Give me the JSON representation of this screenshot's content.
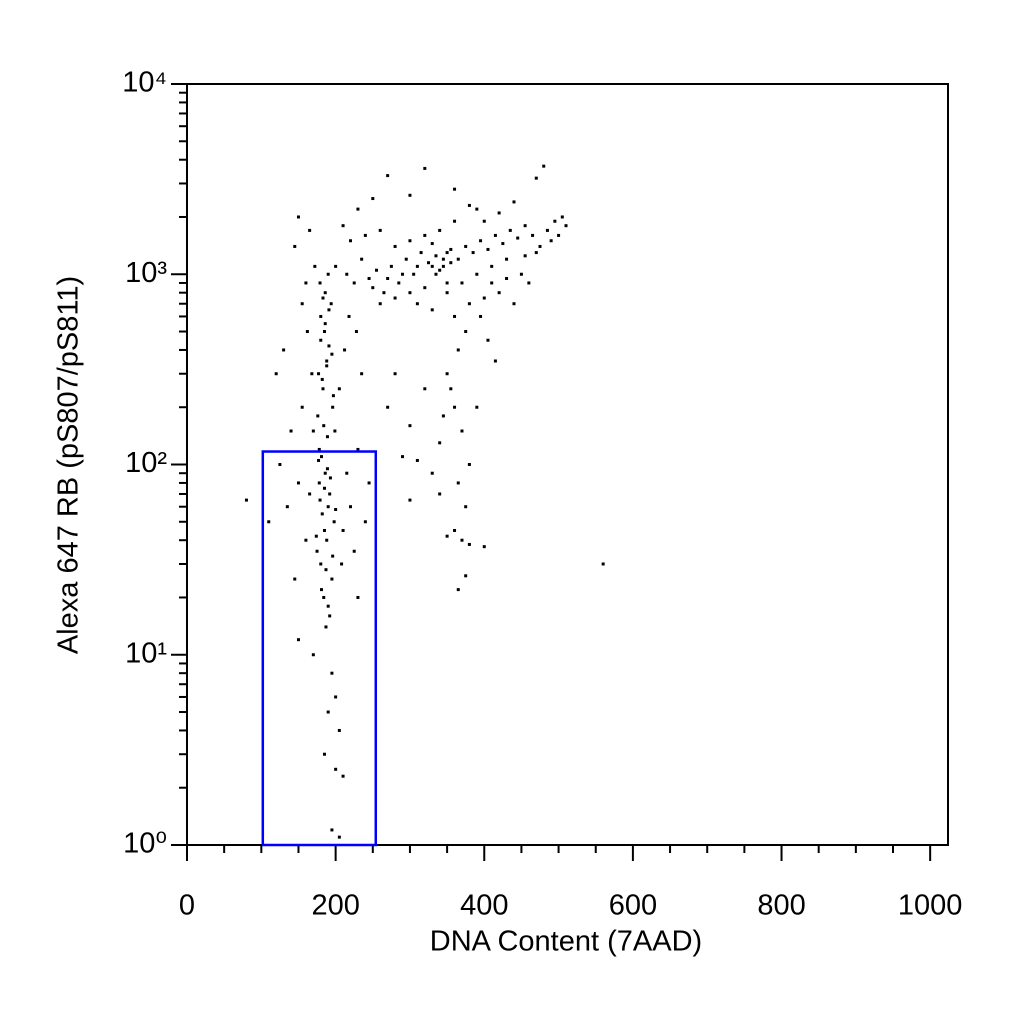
{
  "chart_data": {
    "type": "scatter",
    "xlabel": "DNA Content (7AAD)",
    "ylabel": "Alexa 647 RB (pS807/pS811)",
    "xlim": [
      0,
      1024
    ],
    "ylim": [
      1,
      10000
    ],
    "yscale": "log",
    "xticks": [
      0,
      200,
      400,
      600,
      800,
      1000
    ],
    "xminorticks": [
      50,
      100,
      150,
      250,
      300,
      350,
      450,
      500,
      550,
      650,
      700,
      750,
      850,
      900,
      950
    ],
    "yticks": [
      {
        "value": 1,
        "label": "10⁰"
      },
      {
        "value": 10,
        "label": "10¹"
      },
      {
        "value": 100,
        "label": "10²"
      },
      {
        "value": 1000,
        "label": "10³"
      },
      {
        "value": 10000,
        "label": "10⁴"
      }
    ],
    "yminorticks": [
      2,
      3,
      4,
      5,
      6,
      7,
      8,
      9,
      20,
      30,
      40,
      50,
      60,
      70,
      80,
      90,
      200,
      300,
      400,
      500,
      600,
      700,
      800,
      900,
      2000,
      3000,
      4000,
      5000,
      6000,
      7000,
      8000,
      9000
    ],
    "color": "#000000",
    "gate": {
      "x": [
        102,
        254
      ],
      "y": [
        1,
        117
      ],
      "color": "#0000ff"
    },
    "x": [
      180,
      185,
      190,
      178,
      195,
      188,
      182,
      192,
      186,
      175,
      198,
      184,
      190,
      187,
      179,
      193,
      181,
      189,
      196,
      183,
      177,
      188,
      191,
      185,
      180,
      194,
      186,
      179,
      190,
      184,
      176,
      197,
      182,
      188,
      195,
      180,
      186,
      191,
      183,
      178,
      199,
      187,
      192,
      181,
      196,
      174,
      200,
      185,
      189,
      177,
      160,
      165,
      170,
      168,
      162,
      155,
      150,
      210,
      215,
      220,
      225,
      230,
      205,
      212,
      218,
      208,
      230,
      240,
      245,
      235,
      228,
      140,
      130,
      120,
      135,
      145,
      150,
      170,
      195,
      200,
      190,
      205,
      185,
      200,
      210,
      195,
      205,
      80,
      110,
      125,
      155,
      160,
      172,
      145,
      150,
      165,
      200,
      215,
      225,
      235,
      245,
      255,
      265,
      275,
      285,
      295,
      305,
      315,
      325,
      335,
      345,
      355,
      365,
      375,
      385,
      395,
      405,
      415,
      425,
      435,
      445,
      455,
      465,
      475,
      485,
      495,
      505,
      480,
      470,
      440,
      420,
      400,
      380,
      360,
      340,
      320,
      300,
      280,
      260,
      240,
      220,
      210,
      230,
      250,
      270,
      320,
      300,
      360,
      390,
      330,
      350,
      340,
      335,
      345,
      330,
      355,
      350,
      320,
      310,
      290,
      270,
      250,
      260,
      280,
      300,
      310,
      330,
      350,
      370,
      390,
      410,
      430,
      450,
      460,
      440,
      420,
      400,
      380,
      360,
      470,
      490,
      500,
      510,
      455,
      430,
      410,
      350,
      360,
      370,
      380,
      365,
      375,
      355,
      345,
      365,
      375,
      360,
      370,
      380,
      350,
      400,
      340,
      330,
      300,
      310,
      320,
      395,
      405,
      415,
      390,
      340,
      300,
      290,
      280,
      270,
      560,
      365,
      375
    ],
    "values": [
      30,
      45,
      60,
      80,
      25,
      40,
      55,
      70,
      90,
      35,
      50,
      20,
      18,
      28,
      65,
      85,
      110,
      140,
      200,
      250,
      300,
      350,
      420,
      500,
      600,
      700,
      800,
      900,
      1000,
      160,
      180,
      230,
      280,
      330,
      380,
      450,
      550,
      650,
      750,
      120,
      150,
      14,
      16,
      22,
      33,
      42,
      58,
      75,
      95,
      105,
      40,
      70,
      150,
      300,
      500,
      200,
      80,
      45,
      90,
      60,
      35,
      120,
      250,
      400,
      600,
      30,
      20,
      50,
      80,
      300,
      500,
      150,
      400,
      300,
      60,
      25,
      12,
      10,
      8,
      6,
      5,
      4,
      3,
      2.5,
      2.3,
      1.2,
      1.1,
      65,
      50,
      100,
      700,
      900,
      1100,
      1400,
      2000,
      1700,
      1100,
      1000,
      900,
      1200,
      950,
      1050,
      800,
      1100,
      900,
      1200,
      1000,
      1300,
      1150,
      1250,
      1100,
      1350,
      1200,
      1400,
      1300,
      1500,
      1350,
      1600,
      1450,
      1700,
      1550,
      1800,
      1600,
      1400,
      1700,
      1900,
      2000,
      3700,
      3200,
      2400,
      2100,
      1900,
      2300,
      1900,
      1700,
      1600,
      1500,
      1400,
      1700,
      1600,
      1500,
      1800,
      2200,
      2500,
      3300,
      3600,
      2600,
      2800,
      2200,
      1450,
      1300,
      1050,
      1000,
      1200,
      1100,
      1150,
      900,
      850,
      1100,
      1000,
      950,
      850,
      700,
      750,
      800,
      700,
      650,
      800,
      900,
      1000,
      1100,
      1200,
      1000,
      900,
      700,
      800,
      750,
      700,
      600,
      1300,
      1500,
      1600,
      1800,
      1250,
      950,
      900,
      300,
      200,
      150,
      100,
      400,
      500,
      250,
      180,
      80,
      60,
      45,
      40,
      38,
      42,
      37,
      70,
      90,
      65,
      105,
      250,
      600,
      450,
      350,
      200,
      130,
      160,
      110,
      300,
      200,
      30,
      22,
      26
    ]
  }
}
